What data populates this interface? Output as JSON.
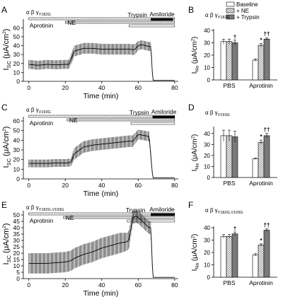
{
  "panels": [
    {
      "id": "A",
      "ab": "α β γ",
      "mut": "γY182G",
      "labels": {
        "aprotinin": "Aprotinin",
        "ne": "NE",
        "trypsin": "Trypsin",
        "amiloride": "Amiloride"
      },
      "xlabel": "Time (min)",
      "ylabel": "ISC (μA/cm²)",
      "ylabel_main": "I",
      "ylabel_sub": "SC",
      "ylabel_tail": " (μA/cm",
      "xticks": [
        "0",
        "20",
        "40",
        "60",
        "80"
      ],
      "yticks": [
        "0",
        "10",
        "20",
        "30",
        "40",
        "50",
        "60"
      ]
    },
    {
      "id": "C",
      "ab": "α β γ",
      "mut": "γV193G",
      "labels": {
        "aprotinin": "Aprotinin",
        "ne": "NE",
        "trypsin": "Trypsin",
        "amiloride": "Amiloride"
      },
      "xlabel": "Time (min)",
      "ylabel": "ISC (μA/cm²)",
      "ylabel_main": "I",
      "ylabel_sub": "SC",
      "ylabel_tail": " (μA/cm",
      "xticks": [
        "0",
        "20",
        "40",
        "60",
        "80"
      ],
      "yticks": [
        "0",
        "10",
        "20",
        "30",
        "40",
        "50",
        "60"
      ]
    },
    {
      "id": "E",
      "ab": "α β γ",
      "mut": "γY182G,V193G",
      "labels": {
        "aprotinin": "Aprotinin",
        "ne": "NE",
        "trypsin": "Trypsin",
        "amiloride": "Amiloride"
      },
      "xlabel": "Time (min)",
      "ylabel": "ISC (μA/cm²)",
      "ylabel_main": "I",
      "ylabel_sub": "SC",
      "ylabel_tail": " (μA/cm",
      "xticks": [
        "0",
        "20",
        "40",
        "60",
        "80"
      ],
      "yticks": [
        "0",
        "5",
        "10",
        "15",
        "20",
        "25",
        "30",
        "35",
        "40",
        "45",
        "50"
      ]
    }
  ],
  "bar_panels": [
    {
      "id": "B",
      "ab": "α β γ",
      "mut": "γY182G",
      "ylabel": "INa (μA/cm²)",
      "ylabel_main": "I",
      "ylabel_sub": "Na",
      "ylabel_tail": " (μA/cm",
      "yticks": [
        "0",
        "10",
        "20",
        "30",
        "40"
      ],
      "groups": [
        "PBS",
        "Aprotinin"
      ],
      "legend": [
        "Baseline",
        "+ NE",
        "+ Trypsin"
      ],
      "annotations": {
        "pbs_trypsin": "†",
        "apr_ne": "*",
        "apr_trypsin": "††"
      }
    },
    {
      "id": "D",
      "ab": "α β γ",
      "mut": "γV193G",
      "ylabel": "INa (μA/cm²)",
      "ylabel_main": "I",
      "ylabel_sub": "Na",
      "ylabel_tail": " (μA/cm",
      "yticks": [
        "0",
        "10",
        "20",
        "30",
        "40"
      ],
      "groups": [
        "PBS",
        "Aprotinin"
      ],
      "legend": [],
      "annotations": {
        "pbs_trypsin": "",
        "apr_ne": "*",
        "apr_trypsin": "††"
      }
    },
    {
      "id": "F",
      "ab": "α β γ",
      "mut": "γY182G,V193G",
      "ylabel": "INa (μA/cm²)",
      "ylabel_main": "I",
      "ylabel_sub": "Na",
      "ylabel_tail": " (μA/cm",
      "yticks": [
        "0",
        "10",
        "20",
        "30",
        "40"
      ],
      "groups": [
        "PBS",
        "Aprotinin"
      ],
      "legend": [],
      "annotations": {
        "pbs_trypsin": "†",
        "apr_ne": "*",
        "apr_trypsin": "††"
      }
    }
  ],
  "chart_data": [
    {
      "panel": "A",
      "type": "line",
      "xlabel": "Time (min)",
      "ylabel": "ISC (μA/cm²)",
      "xlim": [
        -3,
        82
      ],
      "ylim": [
        0,
        65
      ],
      "series": [
        {
          "x": [
            0,
            5,
            10,
            15,
            20,
            22,
            25,
            30,
            35,
            40,
            45,
            50,
            55,
            58,
            60,
            62,
            64,
            66,
            67,
            68,
            70,
            75,
            80
          ],
          "y": [
            19,
            18,
            19,
            18.5,
            19,
            19,
            34,
            37,
            37,
            36,
            36,
            36,
            36,
            35.5,
            40,
            41,
            40,
            39,
            39,
            1,
            1,
            1,
            1
          ],
          "err": [
            5,
            5,
            5,
            5,
            5,
            5,
            6,
            6,
            6,
            6,
            6,
            6,
            6,
            6,
            5,
            5,
            5,
            5,
            5,
            0,
            0,
            0,
            0
          ]
        }
      ]
    },
    {
      "panel": "B",
      "type": "bar",
      "ylabel": "INa (μA/cm²)",
      "ylim": [
        0,
        40
      ],
      "categories": [
        "PBS",
        "Aprotinin"
      ],
      "series": [
        {
          "name": "Baseline",
          "values": [
            31,
            16
          ],
          "err": [
            2,
            1
          ]
        },
        {
          "name": "+ NE",
          "values": [
            31,
            28
          ],
          "err": [
            2,
            1.5
          ]
        },
        {
          "name": "+ Trypsin",
          "values": [
            30,
            33
          ],
          "err": [
            2,
            1
          ]
        }
      ]
    },
    {
      "panel": "C",
      "type": "line",
      "xlabel": "Time (min)",
      "ylabel": "ISC (μA/cm²)",
      "xlim": [
        -3,
        82
      ],
      "ylim": [
        0,
        60
      ],
      "series": [
        {
          "x": [
            0,
            5,
            10,
            15,
            20,
            23,
            25,
            30,
            35,
            40,
            45,
            50,
            55,
            57,
            60,
            63,
            66,
            68,
            70,
            75,
            80
          ],
          "y": [
            16,
            16,
            16,
            16.5,
            16.5,
            17,
            26,
            33,
            35,
            36,
            37,
            38,
            39,
            39,
            46,
            45,
            44,
            1,
            1,
            1,
            1
          ],
          "err": [
            4,
            4,
            4,
            4,
            4,
            4,
            6,
            6,
            6,
            6,
            6,
            6,
            6,
            6,
            5,
            5,
            5,
            0,
            0,
            0,
            0
          ]
        }
      ]
    },
    {
      "panel": "D",
      "type": "bar",
      "ylabel": "INa (μA/cm²)",
      "ylim": [
        0,
        45
      ],
      "categories": [
        "PBS",
        "Aprotinin"
      ],
      "series": [
        {
          "name": "Baseline",
          "values": [
            38,
            17
          ],
          "err": [
            5,
            0.6
          ]
        },
        {
          "name": "+ NE",
          "values": [
            38,
            32
          ],
          "err": [
            5,
            2
          ]
        },
        {
          "name": "+ Trypsin",
          "values": [
            37,
            38
          ],
          "err": [
            5,
            2
          ]
        }
      ]
    },
    {
      "panel": "E",
      "type": "line",
      "xlabel": "Time (min)",
      "ylabel": "ISC (μA/cm²)",
      "xlim": [
        -3,
        82
      ],
      "ylim": [
        0,
        50
      ],
      "series": [
        {
          "x": [
            0,
            5,
            10,
            15,
            20,
            23,
            25,
            30,
            35,
            40,
            45,
            50,
            54,
            55,
            57,
            59,
            61,
            63,
            66,
            67,
            68,
            70,
            75,
            80
          ],
          "y": [
            12,
            12,
            12,
            12.5,
            13,
            14,
            16,
            19,
            21,
            24,
            26,
            28,
            29,
            31,
            48,
            49,
            47,
            44,
            40,
            40,
            1,
            1,
            1,
            1
          ],
          "err": [
            8,
            8,
            8,
            8,
            8,
            8,
            8,
            8,
            8,
            8,
            8,
            8,
            7,
            7,
            5,
            5,
            5,
            5,
            5,
            5,
            0,
            0,
            0,
            0
          ]
        }
      ]
    },
    {
      "panel": "F",
      "type": "bar",
      "ylabel": "INa (μA/cm²)",
      "ylim": [
        0,
        40
      ],
      "categories": [
        "PBS",
        "Aprotinin"
      ],
      "series": [
        {
          "name": "Baseline",
          "values": [
            33,
            18
          ],
          "err": [
            1.5,
            1
          ]
        },
        {
          "name": "+ NE",
          "values": [
            33,
            26
          ],
          "err": [
            1.5,
            1
          ]
        },
        {
          "name": "+ Trypsin",
          "values": [
            35,
            38
          ],
          "err": [
            1.5,
            1
          ]
        }
      ]
    }
  ]
}
